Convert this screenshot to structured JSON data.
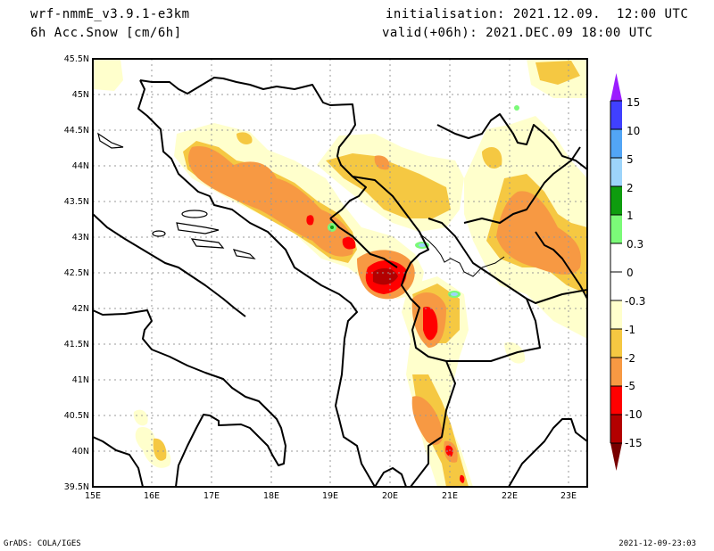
{
  "header": {
    "model": "wrf-nmmE_v3.9.1-e3km",
    "field": "6h Acc.Snow [cm/6h]",
    "initialisation": "initialisation: 2021.12.09.  12:00 UTC",
    "valid": "valid(+06h): 2021.DEC.09 18:00 UTC"
  },
  "axes": {
    "lat_labels": [
      "45.5N",
      "45N",
      "44.5N",
      "44N",
      "43.5N",
      "43N",
      "42.5N",
      "42N",
      "41.5N",
      "41N",
      "40.5N",
      "40N",
      "39.5N"
    ],
    "lon_labels": [
      "15E",
      "16E",
      "17E",
      "18E",
      "19E",
      "20E",
      "21E",
      "22E",
      "23E"
    ]
  },
  "colorbar": {
    "labels": [
      "15",
      "10",
      "5",
      "2",
      "1",
      "0.3",
      "0",
      "-0.3",
      "-1",
      "-2",
      "-5",
      "-10",
      "-15"
    ],
    "colors": {
      "top_arrow": "#9b1cff",
      "bands": [
        "#4040ff",
        "#52a5f5",
        "#9dd4fa",
        "#0e9c0e",
        "#7bfa78",
        "#ffffff",
        "#ffffff",
        "#ffffcc",
        "#f5c842",
        "#f79943",
        "#ff0000",
        "#b30000"
      ],
      "bottom_arrow": "#780000"
    }
  },
  "footer": {
    "left": "GrADS: COLA/IGES",
    "right": "2021-12-09-23:03"
  }
}
